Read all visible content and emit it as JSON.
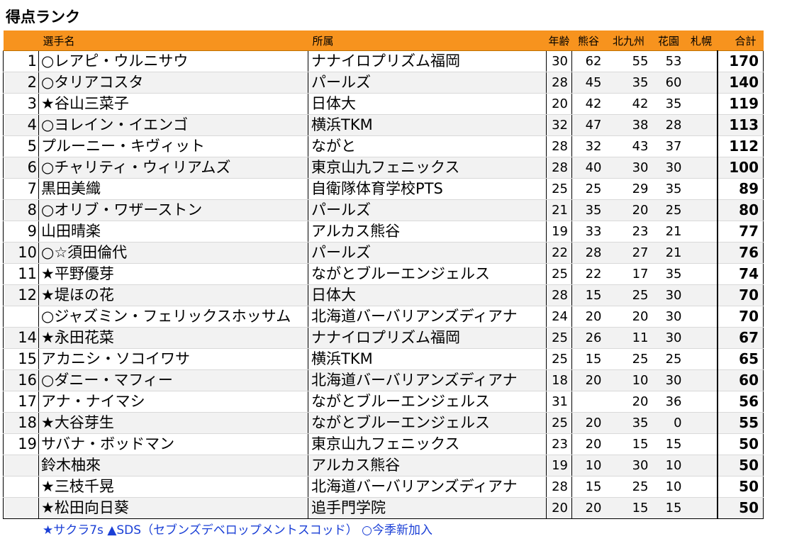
{
  "title": "得点ランク",
  "headers": {
    "name": "選手名",
    "team": "所属",
    "age": "年齢",
    "kumagaya": "熊谷",
    "kitakyushu": "北九州",
    "hanazono": "花園",
    "sapporo": "札幌",
    "total": "合計"
  },
  "rows": [
    {
      "rank": "1",
      "name": "○レアピ・ウルニサウ",
      "team": "ナナイロプリズム福岡",
      "age": "30",
      "kumagaya": "62",
      "kitakyushu": "55",
      "hanazono": "53",
      "sapporo": "",
      "total": "170"
    },
    {
      "rank": "2",
      "name": "○タリアコスタ",
      "team": "パールズ",
      "age": "28",
      "kumagaya": "45",
      "kitakyushu": "35",
      "hanazono": "60",
      "sapporo": "",
      "total": "140"
    },
    {
      "rank": "3",
      "name": "★谷山三菜子",
      "team": "日体大",
      "age": "20",
      "kumagaya": "42",
      "kitakyushu": "42",
      "hanazono": "35",
      "sapporo": "",
      "total": "119"
    },
    {
      "rank": "4",
      "name": "○ヨレイン・イエンゴ",
      "team": "横浜TKM",
      "age": "32",
      "kumagaya": "47",
      "kitakyushu": "38",
      "hanazono": "28",
      "sapporo": "",
      "total": "113"
    },
    {
      "rank": "5",
      "name": "プルーニー・キヴィット",
      "team": "ながと",
      "age": "28",
      "kumagaya": "32",
      "kitakyushu": "43",
      "hanazono": "37",
      "sapporo": "",
      "total": "112"
    },
    {
      "rank": "6",
      "name": "○チャリティ・ウィリアムズ",
      "team": "東京山九フェニックス",
      "age": "28",
      "kumagaya": "40",
      "kitakyushu": "30",
      "hanazono": "30",
      "sapporo": "",
      "total": "100"
    },
    {
      "rank": "7",
      "name": "黒田美織",
      "team": "自衛隊体育学校PTS",
      "age": "25",
      "kumagaya": "25",
      "kitakyushu": "29",
      "hanazono": "35",
      "sapporo": "",
      "total": "89"
    },
    {
      "rank": "8",
      "name": "○オリブ・ワザーストン",
      "team": "パールズ",
      "age": "21",
      "kumagaya": "35",
      "kitakyushu": "20",
      "hanazono": "25",
      "sapporo": "",
      "total": "80"
    },
    {
      "rank": "9",
      "name": "山田晴楽",
      "team": "アルカス熊谷",
      "age": "19",
      "kumagaya": "33",
      "kitakyushu": "23",
      "hanazono": "21",
      "sapporo": "",
      "total": "77"
    },
    {
      "rank": "10",
      "name": "○☆須田倫代",
      "team": "パールズ",
      "age": "22",
      "kumagaya": "28",
      "kitakyushu": "27",
      "hanazono": "21",
      "sapporo": "",
      "total": "76"
    },
    {
      "rank": "11",
      "name": "★平野優芽",
      "team": "ながとブルーエンジェルス",
      "age": "25",
      "kumagaya": "22",
      "kitakyushu": "17",
      "hanazono": "35",
      "sapporo": "",
      "total": "74"
    },
    {
      "rank": "12",
      "name": "★堤ほの花",
      "team": "日体大",
      "age": "28",
      "kumagaya": "15",
      "kitakyushu": "25",
      "hanazono": "30",
      "sapporo": "",
      "total": "70"
    },
    {
      "rank": "",
      "name": "○ジャズミン・フェリックスホッサム",
      "team": "北海道バーバリアンズディアナ",
      "age": "24",
      "kumagaya": "20",
      "kitakyushu": "20",
      "hanazono": "30",
      "sapporo": "",
      "total": "70"
    },
    {
      "rank": "14",
      "name": "★永田花菜",
      "team": "ナナイロプリズム福岡",
      "age": "25",
      "kumagaya": "26",
      "kitakyushu": "11",
      "hanazono": "30",
      "sapporo": "",
      "total": "67"
    },
    {
      "rank": "15",
      "name": "アカニシ・ソコイワサ",
      "team": "横浜TKM",
      "age": "25",
      "kumagaya": "15",
      "kitakyushu": "25",
      "hanazono": "25",
      "sapporo": "",
      "total": "65"
    },
    {
      "rank": "16",
      "name": "○ダニー・マフィー",
      "team": "北海道バーバリアンズディアナ",
      "age": "18",
      "kumagaya": "20",
      "kitakyushu": "10",
      "hanazono": "30",
      "sapporo": "",
      "total": "60"
    },
    {
      "rank": "17",
      "name": "アナ・ナイマシ",
      "team": "ながとブルーエンジェルス",
      "age": "31",
      "kumagaya": "",
      "kitakyushu": "20",
      "hanazono": "36",
      "sapporo": "",
      "total": "56"
    },
    {
      "rank": "18",
      "name": "★大谷芽生",
      "team": "ながとブルーエンジェルス",
      "age": "25",
      "kumagaya": "20",
      "kitakyushu": "35",
      "hanazono": "0",
      "sapporo": "",
      "total": "55"
    },
    {
      "rank": "19",
      "name": "サバナ・ボッドマン",
      "team": "東京山九フェニックス",
      "age": "23",
      "kumagaya": "20",
      "kitakyushu": "15",
      "hanazono": "15",
      "sapporo": "",
      "total": "50"
    },
    {
      "rank": "",
      "name": "鈴木柚來",
      "team": "アルカス熊谷",
      "age": "19",
      "kumagaya": "10",
      "kitakyushu": "30",
      "hanazono": "10",
      "sapporo": "",
      "total": "50"
    },
    {
      "rank": "",
      "name": "★三枝千晃",
      "team": "北海道バーバリアンズディアナ",
      "age": "28",
      "kumagaya": "15",
      "kitakyushu": "25",
      "hanazono": "10",
      "sapporo": "",
      "total": "50"
    },
    {
      "rank": "",
      "name": "★松田向日葵",
      "team": "追手門学院",
      "age": "20",
      "kumagaya": "20",
      "kitakyushu": "15",
      "hanazono": "15",
      "sapporo": "",
      "total": "50"
    }
  ],
  "legend": "★サクラ7s ▲SDS（セブンズデベロップメントスコッド） ○今季新加入",
  "colors": {
    "header_bg": "#f7931e",
    "legend_text": "#1a3fd6",
    "stripe": "#f2f2f2"
  }
}
